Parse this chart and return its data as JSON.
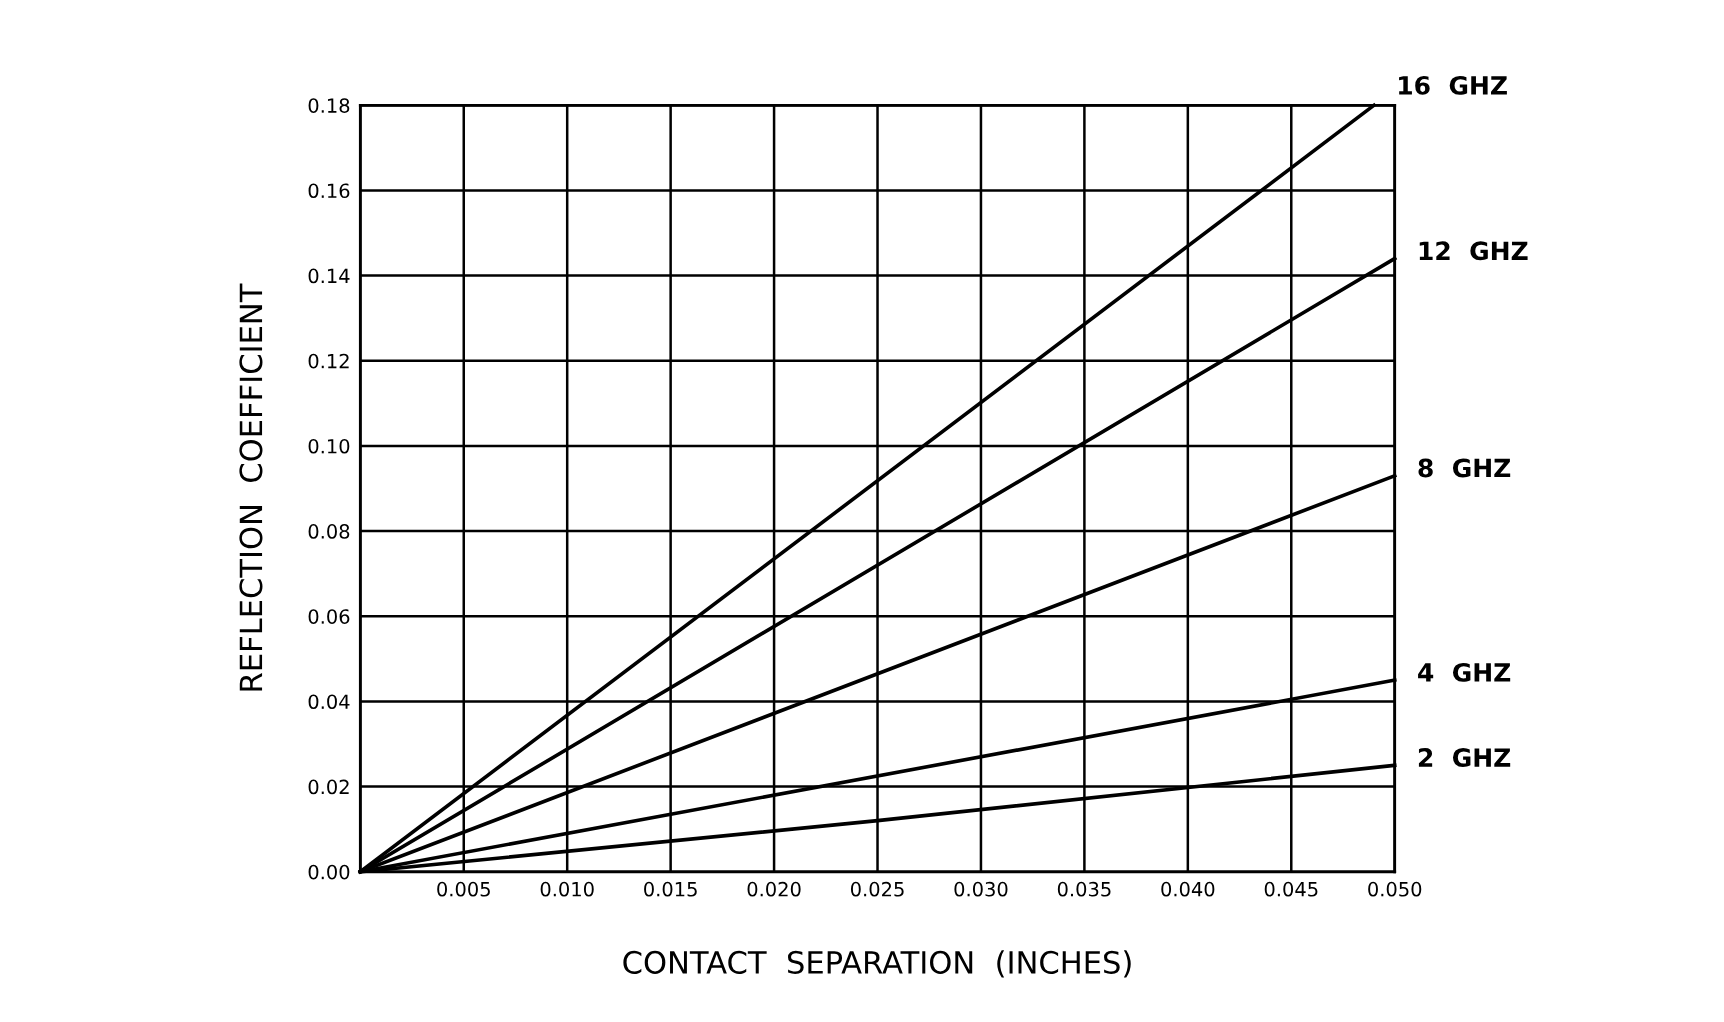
{
  "chart_data": {
    "type": "line",
    "xlabel": "CONTACT  SEPARATION  (INCHES)",
    "ylabel": "REFLECTION  COEFFICIENT",
    "series": [
      {
        "name": "16  GHZ",
        "color": "#000000",
        "x": [
          0,
          0.049
        ],
        "values": [
          0,
          0.18
        ]
      },
      {
        "name": "12  GHZ",
        "color": "#000000",
        "x": [
          0,
          0.05
        ],
        "values": [
          0,
          0.144
        ]
      },
      {
        "name": "8  GHZ",
        "color": "#000000",
        "x": [
          0,
          0.05
        ],
        "values": [
          0,
          0.093
        ]
      },
      {
        "name": "4  GHZ",
        "color": "#000000",
        "x": [
          0,
          0.05
        ],
        "values": [
          0,
          0.045
        ]
      },
      {
        "name": "2  GHZ",
        "color": "#000000",
        "x": [
          0,
          0.025,
          0.05
        ],
        "values": [
          0,
          0.012,
          0.025
        ]
      }
    ],
    "xlim": [
      0,
      0.05
    ],
    "ylim": [
      0,
      0.18
    ],
    "xticks": [
      {
        "value": 0,
        "label": null
      },
      0.005,
      {
        "value": 0.01,
        "label": "0.010"
      },
      0.015,
      {
        "value": 0.02,
        "label": "0.020"
      },
      0.025,
      {
        "value": 0.03,
        "label": "0.030"
      },
      0.035,
      {
        "value": 0.04,
        "label": "0.040"
      },
      0.045,
      {
        "value": 0.05,
        "label": "0.050"
      }
    ],
    "yticks": [
      {
        "value": 0,
        "label": "0.00"
      },
      0.02,
      0.04,
      0.06,
      0.08,
      {
        "value": 0.1,
        "label": "0.10"
      },
      0.12,
      0.14,
      0.16,
      0.18
    ],
    "grid": true,
    "legend": false,
    "marker": "none",
    "line_style": "solid"
  }
}
